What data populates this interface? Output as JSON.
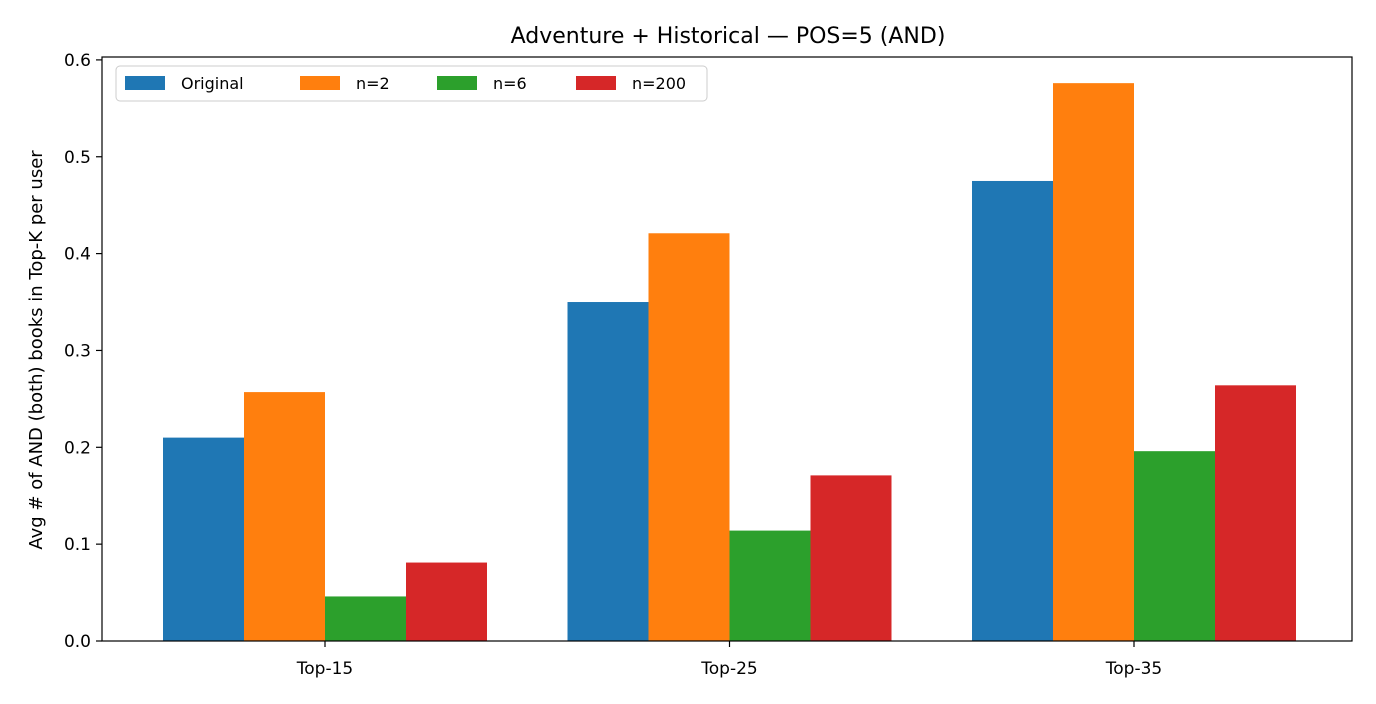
{
  "chart_data": {
    "type": "bar",
    "title": "Adventure + Historical — POS=5 (AND)",
    "xlabel": "",
    "ylabel": "Avg # of AND (both) books in Top-K per user",
    "categories": [
      "Top-15",
      "Top-25",
      "Top-35"
    ],
    "series": [
      {
        "name": "Original",
        "color": "#1f77b4",
        "values": [
          0.21,
          0.35,
          0.475
        ]
      },
      {
        "name": "n=2",
        "color": "#ff7f0e",
        "values": [
          0.257,
          0.421,
          0.576
        ]
      },
      {
        "name": "n=6",
        "color": "#2ca02c",
        "values": [
          0.046,
          0.114,
          0.196
        ]
      },
      {
        "name": "n=200",
        "color": "#d62728",
        "values": [
          0.081,
          0.171,
          0.264
        ]
      }
    ],
    "ylim": [
      0,
      0.6
    ],
    "yticks": [
      "0.0",
      "0.1",
      "0.2",
      "0.3",
      "0.4",
      "0.5",
      "0.6"
    ],
    "grid": false,
    "legend_position": "top-left"
  }
}
